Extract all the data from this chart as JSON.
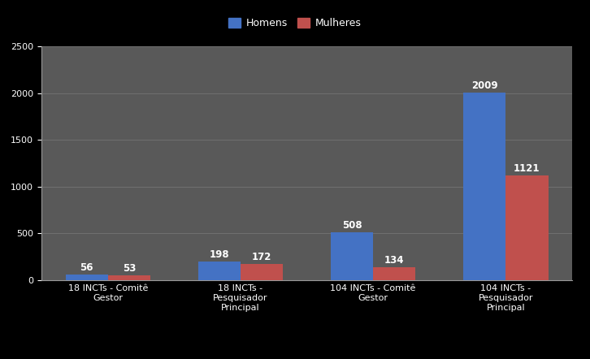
{
  "categories": [
    "18 INCTs - Comitê\nGestor",
    "18 INCTs -\nPesquisador\nPrincipal",
    "104 INCTs - Comitê\nGestor",
    "104 INCTs -\nPesquisador\nPrincipal"
  ],
  "homens": [
    56,
    198,
    508,
    2009
  ],
  "mulheres": [
    53,
    172,
    134,
    1121
  ],
  "bar_color_homens": "#4472C4",
  "bar_color_mulheres": "#C0504D",
  "outer_bg_color": "#000000",
  "legend_bg_color": "#1a1a1a",
  "plot_bg_color": "#595959",
  "ylim": [
    0,
    2500
  ],
  "yticks": [
    0,
    500,
    1000,
    1500,
    2000,
    2500
  ],
  "legend_labels": [
    "Homens",
    "Mulheres"
  ],
  "bar_width": 0.32,
  "tick_fontsize": 8,
  "legend_fontsize": 9,
  "value_fontsize": 8.5,
  "grid_color": "#707070",
  "axis_color": "#999999"
}
